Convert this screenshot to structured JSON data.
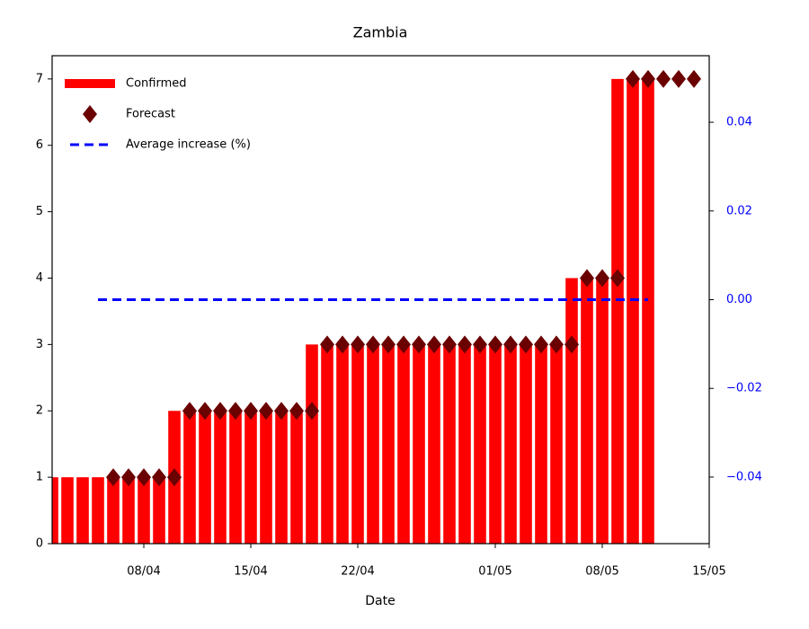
{
  "chart_data": {
    "type": "bar",
    "title": "Zambia",
    "xlabel": "Date",
    "xlim": [
      "02/04",
      "15/05"
    ],
    "xticks": [
      "08/04",
      "15/04",
      "22/04",
      "01/05",
      "08/05",
      "15/05"
    ],
    "ylim": [
      0,
      7.35
    ],
    "yticks": [
      0,
      1,
      2,
      3,
      4,
      5,
      6,
      7
    ],
    "y2lim": [
      -0.055,
      0.055
    ],
    "y2ticks": [
      {
        "value": -0.04,
        "label": "−0.04"
      },
      {
        "value": -0.02,
        "label": "−0.02"
      },
      {
        "value": 0,
        "label": "0.00"
      },
      {
        "value": 0.02,
        "label": "0.02"
      },
      {
        "value": 0.04,
        "label": "0.04"
      }
    ],
    "y2color": "#0000ff",
    "legend": "upper left",
    "series": [
      {
        "name": "Confirmed",
        "type": "bar",
        "color": "#ff0000",
        "x": [
          "02/04",
          "03/04",
          "04/04",
          "05/04",
          "06/04",
          "07/04",
          "08/04",
          "09/04",
          "10/04",
          "11/04",
          "12/04",
          "13/04",
          "14/04",
          "15/04",
          "16/04",
          "17/04",
          "18/04",
          "19/04",
          "20/04",
          "21/04",
          "22/04",
          "23/04",
          "24/04",
          "25/04",
          "26/04",
          "27/04",
          "28/04",
          "29/04",
          "30/04",
          "01/05",
          "02/05",
          "03/05",
          "04/05",
          "05/05",
          "06/05",
          "07/05",
          "08/05",
          "09/05",
          "10/05",
          "11/05"
        ],
        "values": [
          1,
          1,
          1,
          1,
          1,
          1,
          1,
          1,
          2,
          2,
          2,
          2,
          2,
          2,
          2,
          2,
          2,
          3,
          3,
          3,
          3,
          3,
          3,
          3,
          3,
          3,
          3,
          3,
          3,
          3,
          3,
          3,
          3,
          3,
          4,
          4,
          4,
          7,
          7,
          7
        ]
      },
      {
        "name": "Forecast",
        "type": "scatter",
        "color": "#6b0000",
        "x": [
          "06/04",
          "07/04",
          "08/04",
          "09/04",
          "10/04",
          "11/04",
          "12/04",
          "13/04",
          "14/04",
          "15/04",
          "16/04",
          "17/04",
          "18/04",
          "19/04",
          "20/04",
          "21/04",
          "22/04",
          "23/04",
          "24/04",
          "25/04",
          "26/04",
          "27/04",
          "28/04",
          "29/04",
          "30/04",
          "01/05",
          "02/05",
          "03/05",
          "04/05",
          "05/05",
          "06/05",
          "07/05",
          "08/05",
          "09/05",
          "10/05",
          "11/05",
          "12/05",
          "13/05",
          "14/05"
        ],
        "values": [
          1,
          1,
          1,
          1,
          1,
          2,
          2,
          2,
          2,
          2,
          2,
          2,
          2,
          2,
          3,
          3,
          3,
          3,
          3,
          3,
          3,
          3,
          3,
          3,
          3,
          3,
          3,
          3,
          3,
          3,
          3,
          4,
          4,
          4,
          7,
          7,
          7,
          7,
          7
        ]
      },
      {
        "name": "Average increase (%)",
        "type": "line",
        "axis": "y2",
        "color": "#0000ff",
        "x": [
          "05/04",
          "11/05"
        ],
        "values": [
          0,
          0
        ]
      }
    ]
  }
}
